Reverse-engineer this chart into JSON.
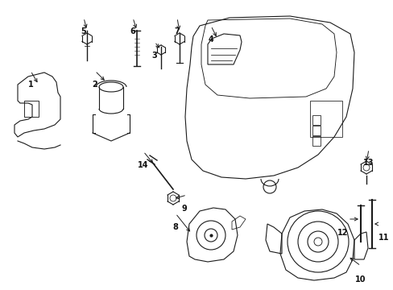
{
  "background": "#ffffff",
  "line_color": "#1a1a1a",
  "label_color": "#111111",
  "fig_width": 4.89,
  "fig_height": 3.6,
  "dpi": 100
}
